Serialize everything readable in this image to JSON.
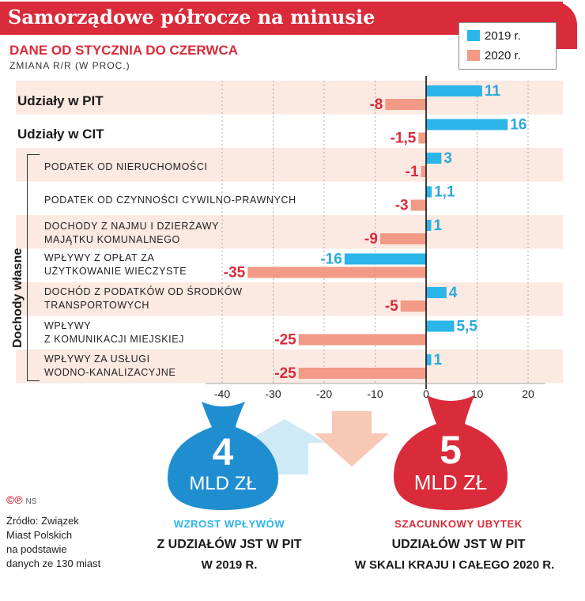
{
  "header": {
    "title": "Samorządowe półrocze na minusie",
    "subtitle": "DANE OD STYCZNIA DO CZERWCA",
    "unit_note": "ZMIANA R/R (W PROC.)"
  },
  "colors": {
    "s2019": "#2bb5e8",
    "s2020": "#f29a85",
    "accent": "#d92b3a",
    "stripe": "#fbe9e2"
  },
  "legend": [
    "2019 r.",
    "2020 r."
  ],
  "group_label": "Dochody własne",
  "chart_data": {
    "type": "bar",
    "orientation": "horizontal",
    "categories": [
      "Udziały w PIT",
      "Udziały w CIT",
      "PODATEK OD NIERUCHOMOŚCI",
      "PODATEK OD CZYNNOŚCI CYWILNO-PRAWNYCH",
      "DOCHODY Z NAJMU I DZIERŻAWY MAJĄTKU KOMUNALNEGO",
      "WPŁYWY Z OPŁAT ZA UŻYTKOWANIE WIECZYSTE",
      "DOCHÓD Z PODATKÓW OD ŚRODKÓW TRANSPORTOWYCH",
      "WPŁYWY Z KOMUNIKACJI MIEJSKIEJ",
      "WPŁYWY ZA USŁUGI WODNO-KANALIZACYJNE"
    ],
    "category_lines": [
      [
        "Udziały w PIT"
      ],
      [
        "Udziały w CIT"
      ],
      [
        "PODATEK OD NIERUCHOMOŚCI"
      ],
      [
        "PODATEK OD CZYNNOŚCI CYWILNO-PRAWNYCH"
      ],
      [
        "DOCHODY Z NAJMU I DZIERŻAWY",
        "MAJĄTKU KOMUNALNEGO"
      ],
      [
        "WPŁYWY Z OPŁAT ZA",
        "UŻYTKOWANIE WIECZYSTE"
      ],
      [
        "DOCHÓD Z PODATKÓW OD ŚRODKÓW",
        "TRANSPORTOWYCH"
      ],
      [
        "WPŁYWY",
        "Z KOMUNIKACJI MIEJSKIEJ"
      ],
      [
        "WPŁYWY ZA USŁUGI",
        "WODNO-KANALIZACYJNE"
      ]
    ],
    "series": [
      {
        "name": "2019 r.",
        "values": [
          11,
          16,
          3,
          1.1,
          1,
          -16,
          4,
          5.5,
          1
        ],
        "labels": [
          "11",
          "16",
          "3",
          "1,1",
          "1",
          "-16",
          "4",
          "5,5",
          "1"
        ]
      },
      {
        "name": "2020 r.",
        "values": [
          -8,
          -1.5,
          -1,
          -3,
          -9,
          -35,
          -5,
          -25,
          -25
        ],
        "labels": [
          "-8",
          "-1,5",
          "-1",
          "-3",
          "-9",
          "-35",
          "-5",
          "-25",
          "-25"
        ]
      }
    ],
    "xlim": [
      -40,
      20
    ],
    "xticks": [
      -40,
      -30,
      -20,
      -10,
      0,
      10,
      20
    ],
    "grid": true,
    "legend_position": "top-right"
  },
  "bags": {
    "left": {
      "number": "4",
      "unit": "MLD ZŁ"
    },
    "right": {
      "number": "5",
      "unit": "MLD ZŁ"
    }
  },
  "footer": {
    "left_line1": "WZROST WPŁYWÓW",
    "left_line2": "Z UDZIAŁÓW JST W PIT",
    "left_line3": "W 2019 R.",
    "right_line1": "SZACUNKOWY UBYTEK",
    "right_line2": "UDZIAŁÓW JST W PIT",
    "right_line3": "W SKALI KRAJU I CAŁEGO 2020 R."
  },
  "credits": {
    "logo": "©℗",
    "agency": "NS"
  },
  "source": [
    "Źródło: Związek",
    "Miast Polskich",
    "na podstawie",
    "danych ze 130 miast"
  ]
}
